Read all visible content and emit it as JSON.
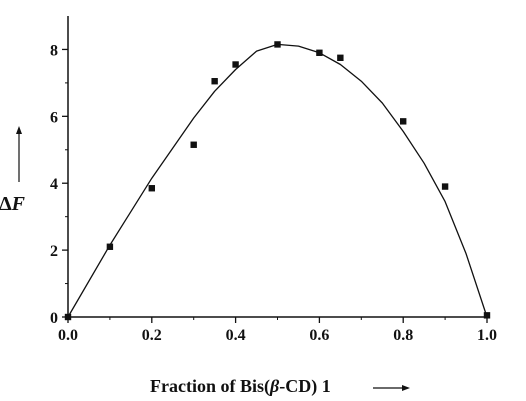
{
  "chart_data": {
    "type": "scatter",
    "title": "",
    "xlabel_prefix": "Fraction of Bis(",
    "xlabel_beta": "β",
    "xlabel_suffix": "-CD) 1",
    "ylabel_delta": "Δ",
    "ylabel_var": "F",
    "xlim": [
      0,
      1.0
    ],
    "ylim": [
      0,
      9
    ],
    "x_ticks": [
      0.0,
      0.2,
      0.4,
      0.6,
      0.8,
      1.0
    ],
    "x_tick_labels": [
      "0.0",
      "0.2",
      "0.4",
      "0.6",
      "0.8",
      "1.0"
    ],
    "y_ticks": [
      0,
      2,
      4,
      6,
      8
    ],
    "y_tick_labels": [
      "0",
      "2",
      "4",
      "6",
      "8"
    ],
    "grid": false,
    "series": [
      {
        "kind": "points",
        "marker": "square",
        "x": [
          0.0,
          0.1,
          0.2,
          0.3,
          0.35,
          0.4,
          0.5,
          0.6,
          0.65,
          0.8,
          0.9,
          1.0
        ],
        "y": [
          0.0,
          2.1,
          3.85,
          5.15,
          7.05,
          7.55,
          8.15,
          7.9,
          7.75,
          5.85,
          3.9,
          0.05
        ]
      },
      {
        "kind": "fit-curve",
        "x": [
          0.0,
          0.1,
          0.2,
          0.3,
          0.35,
          0.4,
          0.45,
          0.5,
          0.55,
          0.6,
          0.65,
          0.7,
          0.75,
          0.8,
          0.85,
          0.9,
          0.95,
          1.0
        ],
        "y": [
          0.0,
          2.15,
          4.15,
          5.95,
          6.75,
          7.4,
          7.95,
          8.15,
          8.1,
          7.9,
          7.55,
          7.05,
          6.4,
          5.55,
          4.6,
          3.45,
          1.9,
          0.0
        ]
      }
    ],
    "colors": {
      "marks": "#111111",
      "axes": "#111111"
    }
  }
}
